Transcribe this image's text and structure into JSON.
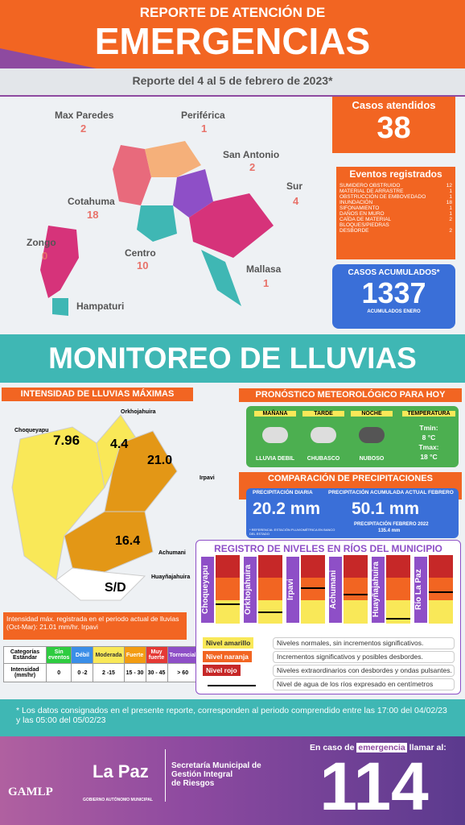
{
  "header": {
    "title_small": "REPORTE DE ATENCIÓN DE",
    "title_big": "EMERGENCIAS",
    "subtitle": "Reporte del 4 al 5 de febrero de 2023*"
  },
  "districts": [
    {
      "name": "Max Paredes",
      "value": "2"
    },
    {
      "name": "Periférica",
      "value": "1"
    },
    {
      "name": "San Antonio",
      "value": "2"
    },
    {
      "name": "Sur",
      "value": "4"
    },
    {
      "name": "Cotahuma",
      "value": "18"
    },
    {
      "name": "Zongo",
      "value": "0"
    },
    {
      "name": "Centro",
      "value": "10"
    },
    {
      "name": "Mallasa",
      "value": "1"
    },
    {
      "name": "Hampaturi"
    }
  ],
  "casos_atendidos": {
    "label": "Casos atendidos",
    "value": "38"
  },
  "eventos": {
    "title": "Eventos registrados",
    "rows": [
      [
        "SUMIDERO OBSTRUIDO",
        "12"
      ],
      [
        "MATERIAL DE ARRASTRE",
        "1"
      ],
      [
        "OBSTRUCCIÓN DE EMBOVEDADO",
        "1"
      ],
      [
        "INUNDACIÓN",
        "18"
      ],
      [
        "SIFONAMIENTO",
        "1"
      ],
      [
        "DAÑOS EN MURO",
        "1"
      ],
      [
        "CAÍDA DE MATERIAL BLOQUES/PIEDRAS",
        "2"
      ],
      [
        "DESBORDE",
        "2"
      ]
    ]
  },
  "acumulados": {
    "label": "CASOS ACUMULADOS*",
    "value": "1337",
    "note": "ACUMULADOS ENERO"
  },
  "section_title": "MONITOREO DE LLUVIAS",
  "intensidad": {
    "title": "INTENSIDAD DE LLUVIAS MÁXIMAS",
    "points": [
      {
        "name": "Choqueyapu",
        "value": "7.96"
      },
      {
        "name": "Orkhojahuira",
        "value": "4.4"
      },
      {
        "name": "Irpavi",
        "value": "21.0"
      },
      {
        "name": "Achumani",
        "value": "16.4"
      },
      {
        "name": "Huayñajahuira",
        "value": "S/D"
      }
    ],
    "note": "Intensidad máx. registrada en el periodo actual de lluvias (Oct-Mar): 21.01 mm/hr. Irpavi"
  },
  "table": {
    "rows": [
      [
        "Categorías Estándar",
        "Sin eventos",
        "Débil",
        "Moderada",
        "Fuerte",
        "Muy fuerte",
        "Torrencial"
      ],
      [
        "Intensidad (mm/hr)",
        "0",
        "0 -2",
        "2 -15",
        "15 - 30",
        "30 - 45",
        "> 60"
      ]
    ]
  },
  "pronostico": {
    "title": "PRONÓSTICO METEOROLÓGICO PARA HOY",
    "cols": [
      {
        "head": "MAÑANA",
        "desc": "LLUVIA DEBIL"
      },
      {
        "head": "TARDE",
        "desc": "CHUBASCO"
      },
      {
        "head": "NOCHE",
        "desc": "NUBOSO"
      }
    ],
    "temp_head": "TEMPERATURA",
    "tmin_label": "Tmin:",
    "tmin": "8 °C",
    "tmax_label": "Tmax:",
    "tmax": "18 °C"
  },
  "comparacion": {
    "title": "COMPARACIÓN DE PRECIPITACIONES ACUMULADAS",
    "diaria_label": "PRECIPITACIÓN DIARIA",
    "diaria": "20.2 mm",
    "acum_label": "PRECIPITACIÓN ACUMULADA ACTUAL FEBRERO",
    "acum": "50.1 mm",
    "ref": "* REFERENCIA: ESTACIÓN PLUVIOMÉTRICA EN BANCO DEL ESTADO",
    "prev_label": "PRECIPITACIÓN FEBRERO 2022",
    "prev": "135.4 mm"
  },
  "rios": {
    "title": "REGISTRO DE NIVELES EN RÍOS DEL MUNICIPIO",
    "names": [
      "Choqueyapu",
      "Orkhojahuira",
      "Irpavi",
      "Achumani",
      "Huayñajahuira",
      "Río La Paz"
    ],
    "legend": [
      [
        "Nivel amarillo",
        "Niveles normales, sin incrementos significativos."
      ],
      [
        "Nivel naranja",
        "Incrementos significativos y posibles desbordes."
      ],
      [
        "Nivel rojo",
        "Niveles extraordinarios con desbordes y ondas pulsantes."
      ]
    ],
    "water_note": "Nivel de agua de los ríos expresado en centímetros"
  },
  "footer": {
    "note": "* Los datos consignados en el presente reporte, corresponden al periodo comprendido entre las 17:00 del 04/02/23 y las 05:00 del 05/02/23",
    "gamlp": "GAMLP",
    "lapaz": "La Paz",
    "gobierno": "GOBIERNO AUTÓNOMO MUNICIPAL",
    "sec1": "Secretaría Municipal de",
    "sec2": "Gestión Integral",
    "sec3": "de Riesgos",
    "call_pre": "En caso de",
    "call_em": "emergencia",
    "call_post": "llamar al:",
    "number": "114"
  }
}
